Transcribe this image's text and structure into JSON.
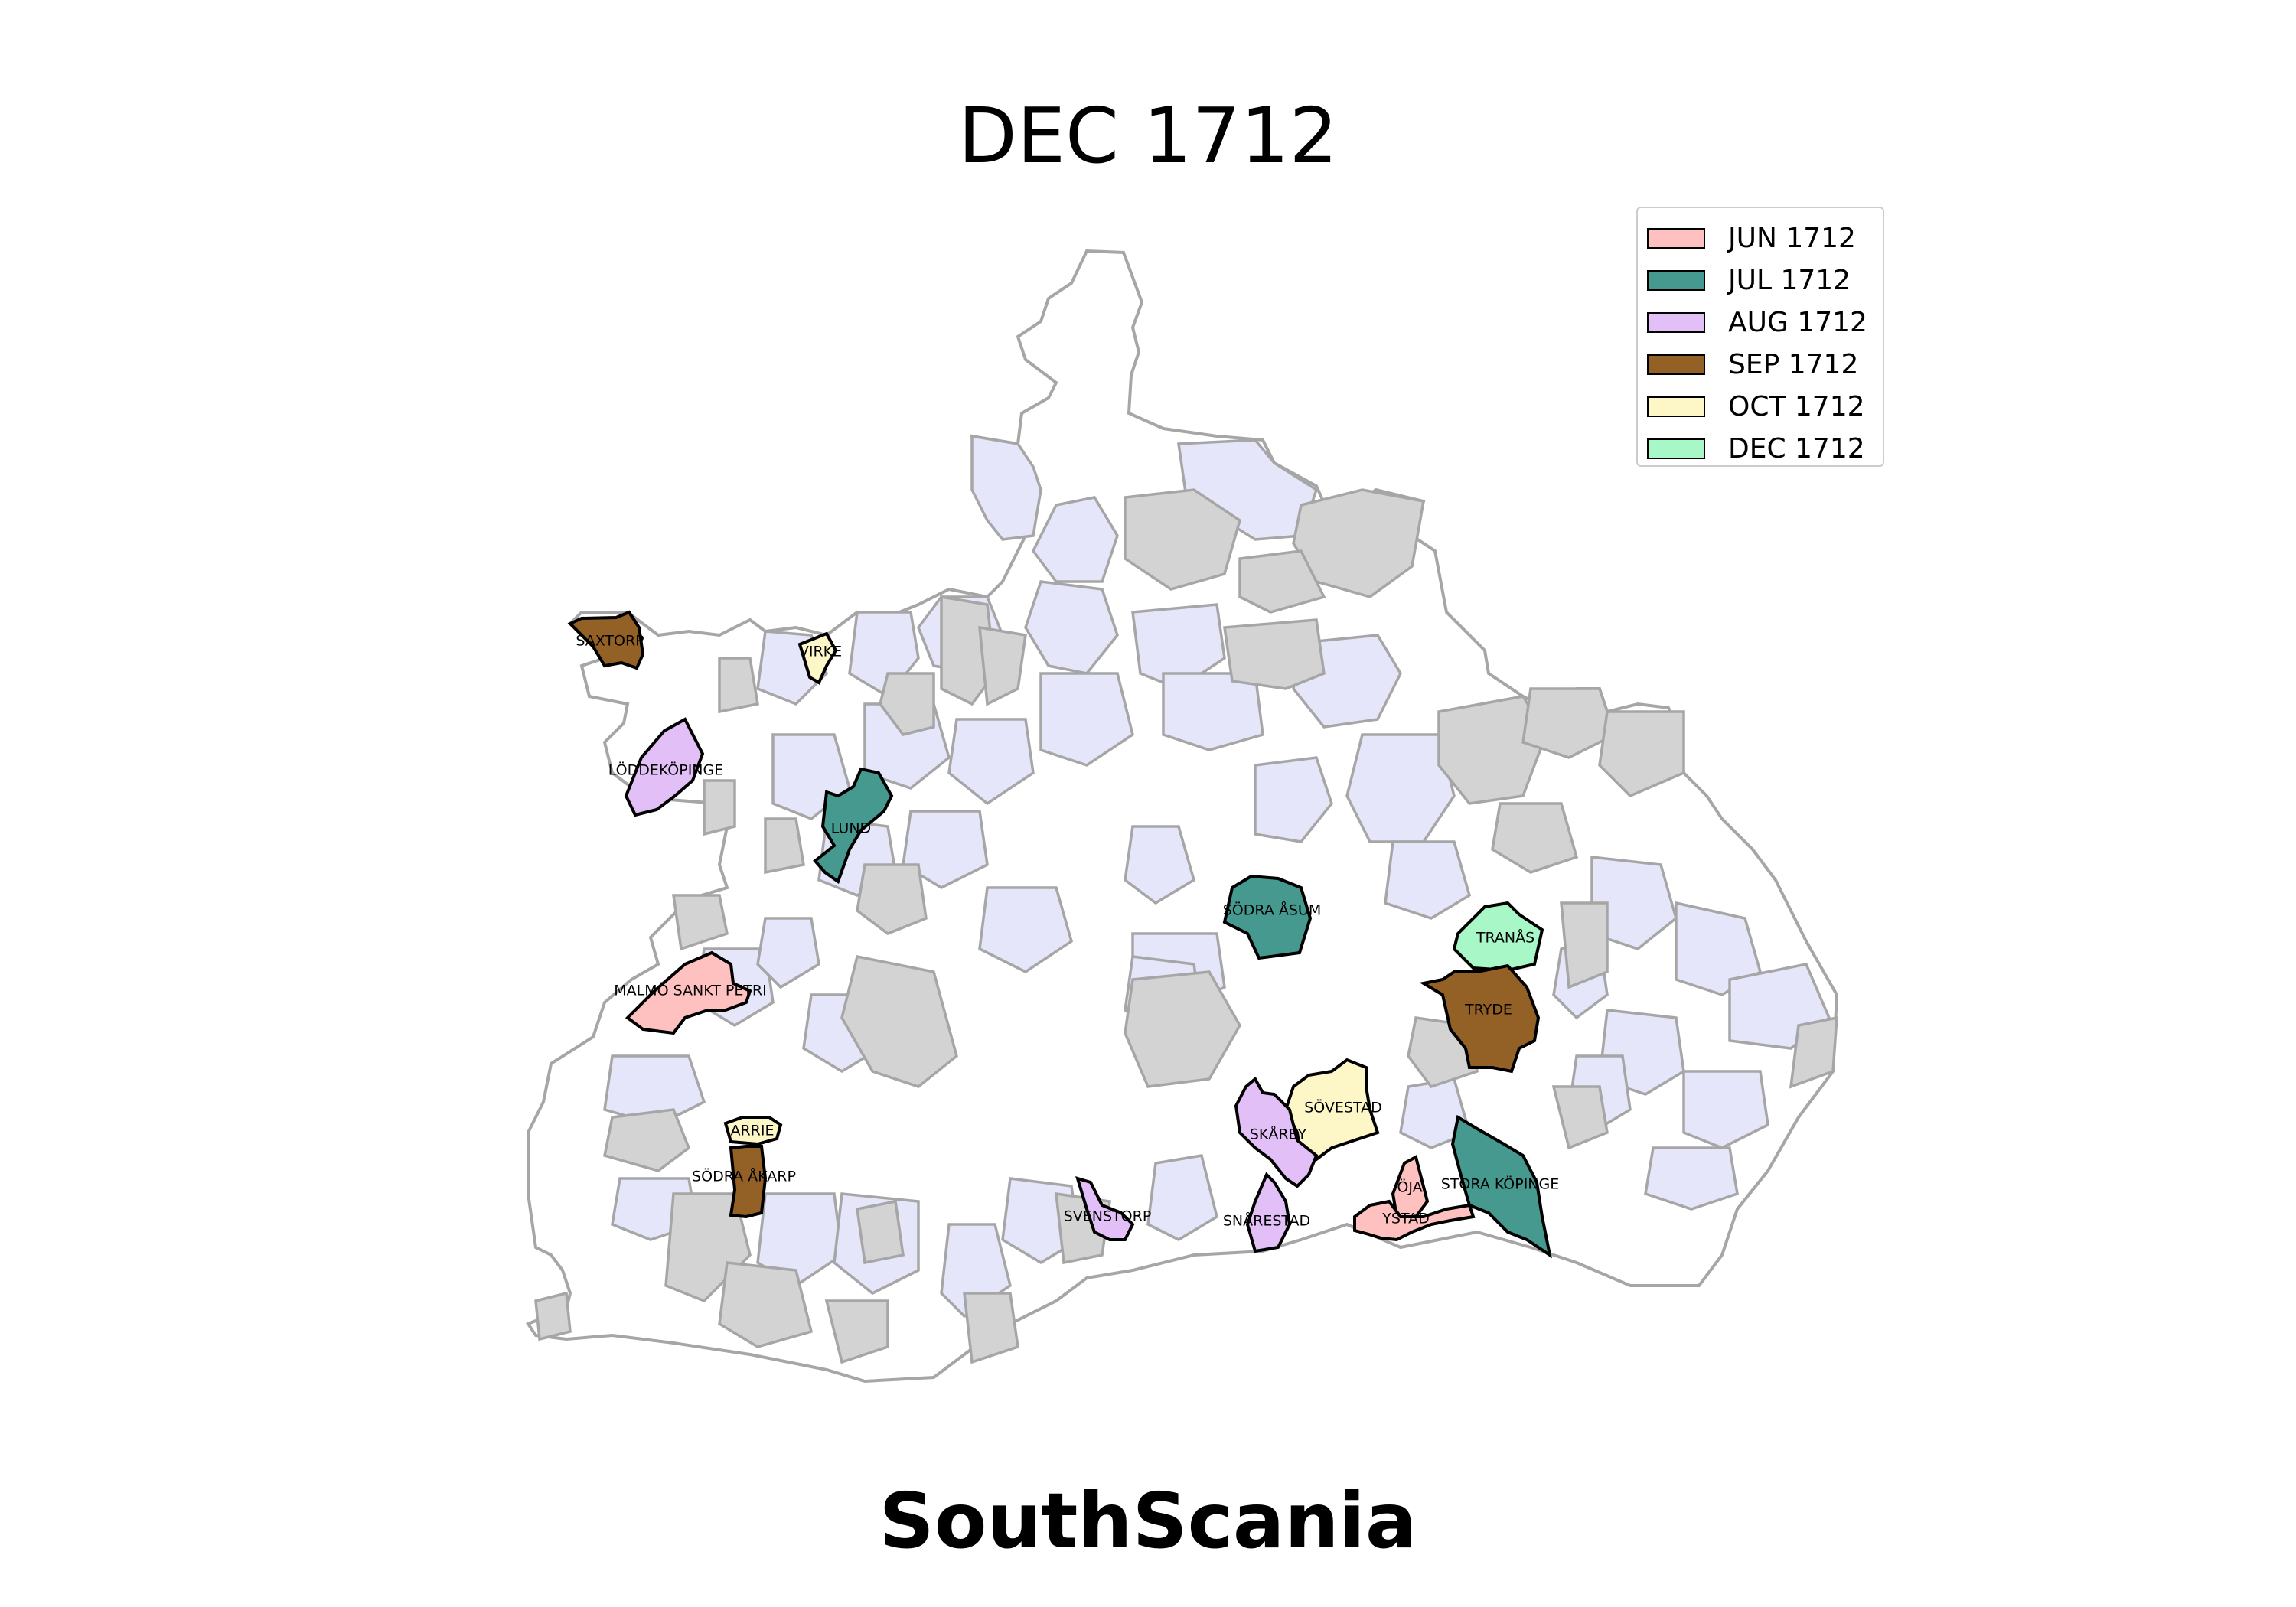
{
  "title": "DEC 1712",
  "region": "SouthScania",
  "colors": {
    "outline": "#a6a6a6",
    "highlight_outline": "#000000",
    "background_light": "#e6e6fa",
    "background_grey": "#d3d3d3",
    "background_white": "#ffffff"
  },
  "legend": [
    {
      "label": "JUN 1712",
      "color": "#ffc0c0"
    },
    {
      "label": "JUL 1712",
      "color": "#45998f"
    },
    {
      "label": "AUG 1712",
      "color": "#e2c0f7"
    },
    {
      "label": "SEP 1712",
      "color": "#936026"
    },
    {
      "label": "OCT 1712",
      "color": "#fdf7c8"
    },
    {
      "label": "DEC 1712",
      "color": "#a8f7c7"
    }
  ],
  "parishes": [
    {
      "name": "SAXTORP",
      "period": "SEP 1712"
    },
    {
      "name": "VIRKE",
      "period": "OCT 1712"
    },
    {
      "name": "LÖDDEKÖPINGE",
      "period": "AUG 1712"
    },
    {
      "name": "LUND",
      "period": "JUL 1712"
    },
    {
      "name": "SÖDRA ÅSUM",
      "period": "JUL 1712"
    },
    {
      "name": "TRANÅS",
      "period": "DEC 1712"
    },
    {
      "name": "TRYDE",
      "period": "SEP 1712"
    },
    {
      "name": "MALMÖ SANKT PETRI",
      "period": "JUN 1712"
    },
    {
      "name": "SÖVESTAD",
      "period": "OCT 1712"
    },
    {
      "name": "SKÅRBY",
      "period": "AUG 1712"
    },
    {
      "name": "ARRIE",
      "period": "OCT 1712"
    },
    {
      "name": "SÖDRA ÅKARP",
      "period": "SEP 1712"
    },
    {
      "name": "ÖJA",
      "period": "JUN 1712"
    },
    {
      "name": "STORA KÖPINGE",
      "period": "JUL 1712"
    },
    {
      "name": "SVENSTORP",
      "period": "AUG 1712"
    },
    {
      "name": "SNÅRESTAD",
      "period": "AUG 1712"
    },
    {
      "name": "YSTAD",
      "period": "JUN 1712"
    }
  ]
}
